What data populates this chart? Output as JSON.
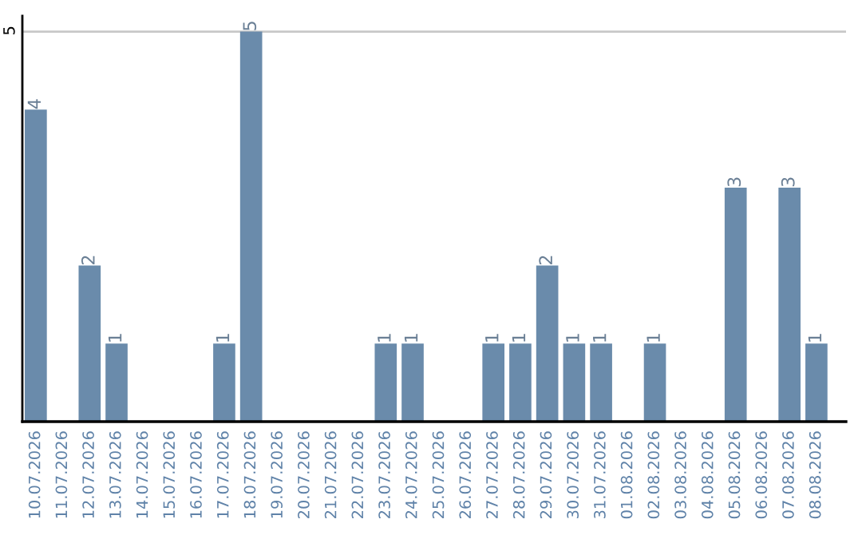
{
  "chart_data": {
    "type": "bar",
    "categories": [
      "10.07.2026",
      "11.07.2026",
      "12.07.2026",
      "13.07.2026",
      "14.07.2026",
      "15.07.2026",
      "16.07.2026",
      "17.07.2026",
      "18.07.2026",
      "19.07.2026",
      "20.07.2026",
      "21.07.2026",
      "22.07.2026",
      "23.07.2026",
      "24.07.2026",
      "25.07.2026",
      "26.07.2026",
      "27.07.2026",
      "28.07.2026",
      "29.07.2026",
      "30.07.2026",
      "31.07.2026",
      "01.08.2026",
      "02.08.2026",
      "03.08.2026",
      "04.08.2026",
      "05.08.2026",
      "06.08.2026",
      "07.08.2026",
      "08.08.2026"
    ],
    "values": [
      4,
      0,
      2,
      1,
      0,
      0,
      0,
      1,
      5,
      0,
      0,
      0,
      0,
      1,
      1,
      0,
      0,
      1,
      1,
      2,
      1,
      1,
      0,
      1,
      0,
      0,
      3,
      0,
      3,
      1
    ],
    "value_labels": [
      "4",
      null,
      "2",
      "1",
      null,
      null,
      null,
      "1",
      "5",
      null,
      null,
      null,
      null,
      "1",
      "1",
      null,
      null,
      "1",
      "1",
      "2",
      "1",
      "1",
      null,
      "1",
      null,
      null,
      "3",
      null,
      "3",
      "1"
    ],
    "color": "#6a8bab",
    "ylim": [
      0,
      5.2
    ],
    "yticks": [
      5
    ],
    "grid": "y"
  }
}
